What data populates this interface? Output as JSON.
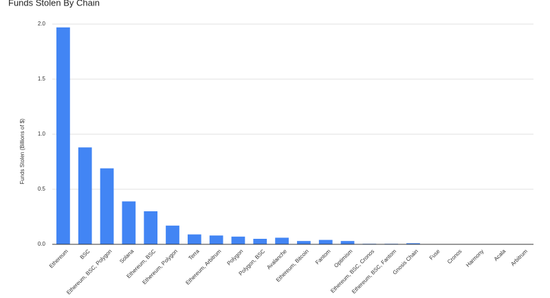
{
  "chart_data": {
    "type": "bar",
    "title": "Funds Stolen By Chain",
    "y_label": "Funds Stolen (Billions of $)",
    "categories": [
      "Ethereum",
      "BSC",
      "Ethereum, BSC, Polygon",
      "Solana",
      "Ethereum, BSC",
      "Ethereum, Polygon",
      "Terra",
      "Ethereum, Arbitrum",
      "Polygon",
      "Polygon, BSC",
      "Avalanche",
      "Ethereum, Bitcoin",
      "Fantom",
      "Optimism",
      "Ethereum, BSC, Cronos",
      "Ethereum, BSC, Fantom",
      "Gnosis Chain",
      "Fuse",
      "Cronos",
      "Harmony",
      "Acala",
      "Arbitrum"
    ],
    "values": [
      1.97,
      0.88,
      0.69,
      0.39,
      0.3,
      0.17,
      0.09,
      0.08,
      0.07,
      0.05,
      0.06,
      0.03,
      0.04,
      0.03,
      0.005,
      0.005,
      0.01,
      0.003,
      0.003,
      0.001,
      0.001,
      0.001
    ],
    "color": "#4285f4",
    "ylim": [
      0,
      2
    ],
    "yticks": [
      {
        "value": 0,
        "label": "0.0"
      },
      0.5,
      {
        "value": 1,
        "label": "1.0"
      },
      1.5,
      {
        "value": 2,
        "label": "2.0"
      }
    ],
    "grid": true
  }
}
